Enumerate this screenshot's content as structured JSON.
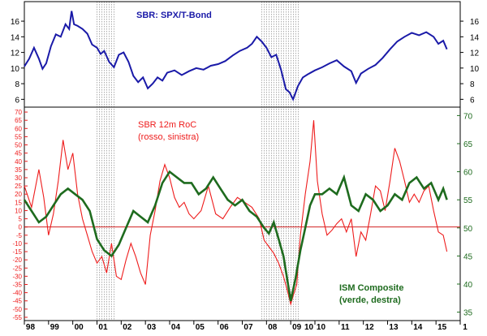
{
  "colors": {
    "sbr": "#1a1aa8",
    "roc": "#ee1c1c",
    "ism": "#1e6b1e",
    "roc_axis": "#ee1c1c",
    "ism_axis": "#1e6b1e",
    "zero_line": "#cc0000",
    "recession": "#777777"
  },
  "chart_data": [
    {
      "type": "line",
      "title": "SBR: SPX/T-Bond",
      "y_ticks": [
        6,
        8,
        10,
        12,
        14,
        16
      ],
      "ylim": [
        5,
        18.5
      ],
      "xlim": [
        1998.0,
        2016.0
      ],
      "grid": false,
      "series": [
        {
          "name": "SBR: SPX/T-Bond",
          "x": [
            1998.0,
            1998.2,
            1998.4,
            1998.6,
            1998.75,
            1998.9,
            1999.1,
            1999.3,
            1999.5,
            1999.7,
            1999.85,
            1999.95,
            2000.05,
            2000.2,
            2000.4,
            2000.6,
            2000.8,
            2001.0,
            2001.15,
            2001.3,
            2001.5,
            2001.7,
            2001.9,
            2002.1,
            2002.3,
            2002.5,
            2002.7,
            2002.9,
            2003.1,
            2003.3,
            2003.5,
            2003.7,
            2003.9,
            2004.2,
            2004.5,
            2004.8,
            2005.1,
            2005.4,
            2005.7,
            2006.0,
            2006.3,
            2006.6,
            2006.9,
            2007.2,
            2007.4,
            2007.6,
            2007.8,
            2008.0,
            2008.2,
            2008.4,
            2008.6,
            2008.8,
            2008.95,
            2009.1,
            2009.3,
            2009.5,
            2009.7,
            2010.0,
            2010.3,
            2010.6,
            2010.9,
            2011.2,
            2011.5,
            2011.7,
            2011.9,
            2012.2,
            2012.5,
            2012.8,
            2013.1,
            2013.4,
            2013.7,
            2014.0,
            2014.3,
            2014.6,
            2014.9,
            2015.1,
            2015.3,
            2015.45
          ],
          "values": [
            10.2,
            11.2,
            12.6,
            11.2,
            9.9,
            10.6,
            12.8,
            14.3,
            14.0,
            15.6,
            15.0,
            17.3,
            15.6,
            15.4,
            15.0,
            14.4,
            13.0,
            12.6,
            11.8,
            12.2,
            10.8,
            10.1,
            11.7,
            12.0,
            10.8,
            9.0,
            8.2,
            8.8,
            7.4,
            8.0,
            8.8,
            8.4,
            9.4,
            9.7,
            9.1,
            9.6,
            10.0,
            9.8,
            10.3,
            10.5,
            10.9,
            11.6,
            12.2,
            12.6,
            13.1,
            14.0,
            13.4,
            12.6,
            11.4,
            11.7,
            9.8,
            7.3,
            6.9,
            6.0,
            7.7,
            8.8,
            9.2,
            9.7,
            10.1,
            10.6,
            11.0,
            10.2,
            9.6,
            8.1,
            9.3,
            9.9,
            10.4,
            11.3,
            12.4,
            13.4,
            14.0,
            14.5,
            14.2,
            14.6,
            14.0,
            13.1,
            13.5,
            12.4
          ]
        }
      ],
      "recession_bands": [
        [
          2001.0,
          2001.75
        ],
        [
          2007.8,
          2009.35
        ]
      ]
    },
    {
      "type": "line",
      "title": "SBR 12m RoC",
      "subtitle": "(rosso, sinistra)",
      "y_ticks_left": [
        -55,
        -50,
        -45,
        -40,
        -35,
        -30,
        -25,
        -20,
        -15,
        -10,
        -5,
        0,
        5,
        10,
        15,
        20,
        25,
        30,
        35,
        40,
        45,
        50,
        55,
        60,
        65,
        70
      ],
      "y_ticks_right": [
        35,
        40,
        45,
        50,
        55,
        60,
        65,
        70
      ],
      "ylim_left": [
        -57,
        73
      ],
      "ylim_right": [
        33.5,
        71.5
      ],
      "x_tick_labels": [
        "98",
        "99",
        "00",
        "01",
        "02",
        "03",
        "04",
        "05",
        "06",
        "07",
        "08",
        "09",
        "10",
        "10",
        "11",
        "12",
        "13",
        "14",
        "15",
        "1"
      ],
      "x_tick_positions": [
        1998.05,
        1999.05,
        2000.05,
        2001.05,
        2002.05,
        2003.05,
        2004.05,
        2005.05,
        2006.05,
        2007.05,
        2008.05,
        2009.05,
        2009.55,
        2010.05,
        2011.05,
        2012.05,
        2013.05,
        2014.05,
        2015.05,
        2016.0
      ],
      "zero_line": 0,
      "series": [
        {
          "name": "SBR 12m RoC",
          "axis": "left",
          "x": [
            1998.0,
            1998.3,
            1998.6,
            1998.8,
            1999.0,
            1999.2,
            1999.4,
            1999.6,
            1999.8,
            2000.0,
            2000.2,
            2000.4,
            2000.6,
            2000.8,
            2001.0,
            2001.2,
            2001.4,
            2001.6,
            2001.8,
            2002.0,
            2002.2,
            2002.4,
            2002.6,
            2002.8,
            2003.0,
            2003.2,
            2003.4,
            2003.6,
            2003.8,
            2004.0,
            2004.2,
            2004.4,
            2004.6,
            2004.8,
            2005.0,
            2005.3,
            2005.6,
            2005.9,
            2006.2,
            2006.5,
            2006.8,
            2007.1,
            2007.4,
            2007.7,
            2007.9,
            2008.1,
            2008.3,
            2008.5,
            2008.7,
            2008.85,
            2009.0,
            2009.1,
            2009.25,
            2009.4,
            2009.6,
            2009.8,
            2009.95,
            2010.1,
            2010.3,
            2010.5,
            2010.7,
            2010.9,
            2011.1,
            2011.3,
            2011.5,
            2011.7,
            2011.9,
            2012.1,
            2012.3,
            2012.5,
            2012.7,
            2012.9,
            2013.1,
            2013.3,
            2013.5,
            2013.7,
            2013.9,
            2014.1,
            2014.3,
            2014.5,
            2014.7,
            2014.9,
            2015.1,
            2015.3,
            2015.45
          ],
          "values": [
            25,
            12,
            35,
            18,
            -5,
            8,
            28,
            53,
            35,
            45,
            20,
            5,
            -5,
            -15,
            -22,
            -18,
            -28,
            -10,
            -30,
            -32,
            -20,
            -10,
            -18,
            -28,
            -35,
            -5,
            10,
            28,
            38,
            30,
            18,
            12,
            15,
            8,
            5,
            10,
            25,
            8,
            5,
            12,
            18,
            15,
            12,
            5,
            -8,
            -12,
            -16,
            -22,
            -30,
            -38,
            -47,
            -42,
            -35,
            -5,
            20,
            40,
            65,
            28,
            8,
            -5,
            -2,
            2,
            5,
            -3,
            5,
            -18,
            -3,
            -8,
            8,
            25,
            22,
            10,
            28,
            48,
            40,
            28,
            15,
            20,
            15,
            22,
            25,
            10,
            -3,
            -5,
            -15
          ]
        },
        {
          "name": "ISM Composite",
          "subtitle": "(verde, destra)",
          "axis": "right",
          "x": [
            1998.0,
            1998.3,
            1998.6,
            1998.9,
            1999.2,
            1999.5,
            1999.8,
            2000.1,
            2000.4,
            2000.7,
            2001.0,
            2001.3,
            2001.6,
            2001.9,
            2002.2,
            2002.5,
            2002.8,
            2003.1,
            2003.4,
            2003.7,
            2004.0,
            2004.3,
            2004.6,
            2004.9,
            2005.2,
            2005.5,
            2005.8,
            2006.1,
            2006.4,
            2006.7,
            2007.0,
            2007.3,
            2007.6,
            2007.9,
            2008.1,
            2008.3,
            2008.5,
            2008.7,
            2008.85,
            2009.0,
            2009.2,
            2009.4,
            2009.6,
            2009.8,
            2010.0,
            2010.3,
            2010.6,
            2010.9,
            2011.2,
            2011.5,
            2011.8,
            2012.1,
            2012.4,
            2012.7,
            2013.0,
            2013.3,
            2013.6,
            2013.9,
            2014.2,
            2014.5,
            2014.8,
            2015.1,
            2015.3,
            2015.45
          ],
          "values": [
            55,
            53,
            51,
            52,
            54,
            56,
            57,
            56,
            55,
            53,
            48,
            46,
            45,
            47,
            50,
            53,
            52,
            51,
            54,
            58,
            60,
            59,
            58,
            58,
            56,
            57,
            59,
            57,
            55,
            54,
            55,
            53,
            52,
            50,
            49,
            51,
            48,
            45,
            41,
            37,
            41,
            46,
            50,
            54,
            56,
            56,
            57,
            56,
            59,
            54,
            53,
            56,
            55,
            53,
            54,
            56,
            55,
            58,
            59,
            57,
            58,
            55,
            57,
            55
          ]
        }
      ],
      "recession_bands": [
        [
          2001.0,
          2001.75
        ],
        [
          2007.8,
          2009.35
        ]
      ]
    }
  ]
}
